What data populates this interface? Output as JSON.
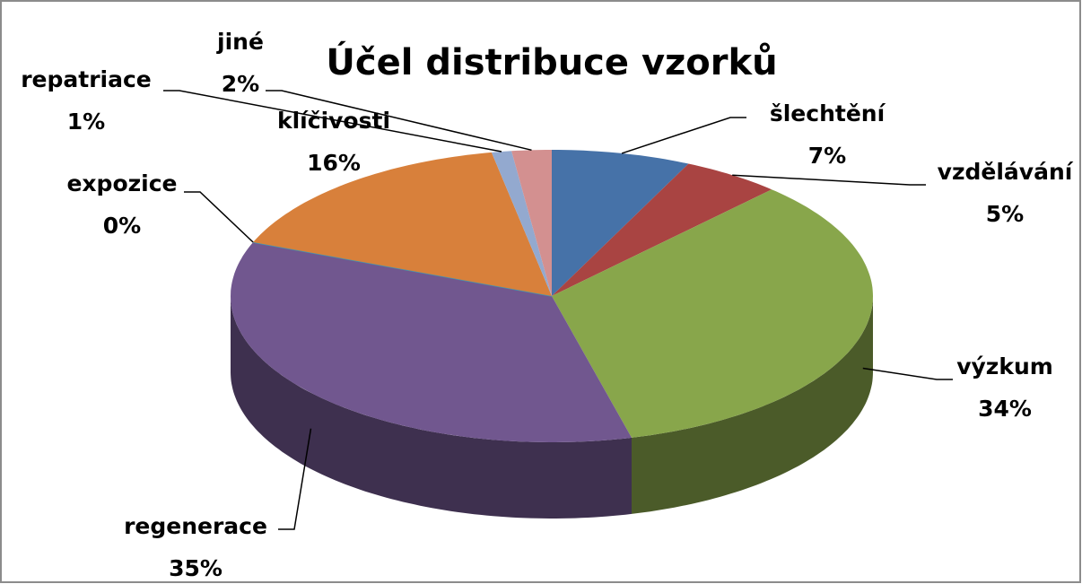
{
  "chart_data": {
    "type": "pie3d",
    "title": "Účel distribuce vzorků",
    "categories": [
      "šlechtění",
      "vzdělávání",
      "výzkum",
      "regenerace",
      "expozice",
      "klíčivosti",
      "repatriace",
      "jiné"
    ],
    "values": [
      7,
      5,
      34,
      35,
      0,
      16,
      1,
      2
    ],
    "value_labels": [
      "7%",
      "5%",
      "34%",
      "35%",
      "0%",
      "16%",
      "1%",
      "2%"
    ],
    "colors": [
      "#4672a8",
      "#a94442",
      "#88a64b",
      "#71578f",
      "#4197b0",
      "#d8803b",
      "#93a9cf",
      "#d39090"
    ]
  }
}
